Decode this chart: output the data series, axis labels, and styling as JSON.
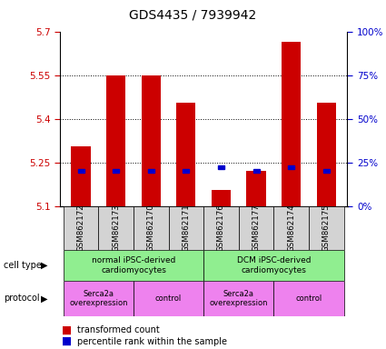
{
  "title": "GDS4435 / 7939942",
  "samples": [
    "GSM862172",
    "GSM862173",
    "GSM862170",
    "GSM862171",
    "GSM862176",
    "GSM862177",
    "GSM862174",
    "GSM862175"
  ],
  "bar_values": [
    5.305,
    5.548,
    5.55,
    5.455,
    5.155,
    5.22,
    5.665,
    5.455
  ],
  "bar_bottom": 5.1,
  "percentile_values": [
    20,
    20,
    20,
    20,
    22,
    20,
    22,
    20
  ],
  "percentile_scale_max": 100,
  "ylim": [
    5.1,
    5.7
  ],
  "yticks": [
    5.1,
    5.25,
    5.4,
    5.55,
    5.7
  ],
  "right_yticks": [
    0,
    25,
    50,
    75,
    100
  ],
  "right_ytick_labels": [
    "0%",
    "25%",
    "50%",
    "75%",
    "100%"
  ],
  "bar_color": "#cc0000",
  "percentile_color": "#0000cc",
  "cell_type_groups": [
    {
      "label": "normal iPSC-derived\ncardiomyocytes",
      "start": 0,
      "end": 4,
      "color": "#90ee90"
    },
    {
      "label": "DCM iPSC-derived\ncardiomyocytes",
      "start": 4,
      "end": 8,
      "color": "#90ee90"
    }
  ],
  "protocol_groups": [
    {
      "label": "Serca2a\noverexpression",
      "start": 0,
      "end": 2,
      "color": "#ee82ee"
    },
    {
      "label": "control",
      "start": 2,
      "end": 4,
      "color": "#ee82ee"
    },
    {
      "label": "Serca2a\noverexpression",
      "start": 4,
      "end": 6,
      "color": "#ee82ee"
    },
    {
      "label": "control",
      "start": 6,
      "end": 8,
      "color": "#ee82ee"
    }
  ],
  "legend_bar_label": "transformed count",
  "legend_pct_label": "percentile rank within the sample",
  "cell_type_label": "cell type",
  "protocol_label": "protocol",
  "background_color": "#ffffff",
  "tick_label_color_left": "#cc0000",
  "tick_label_color_right": "#0000cc",
  "sample_box_color": "#d3d3d3"
}
